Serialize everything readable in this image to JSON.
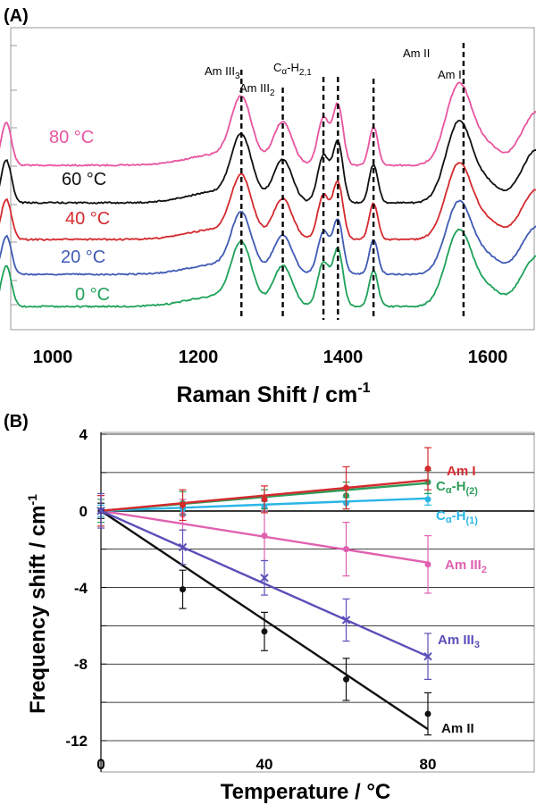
{
  "panel_a": {
    "label": "(A)",
    "xlabel": "Raman Shift / cm",
    "xlabel_sup": "-1",
    "x_ticks": [
      "1000",
      "1200",
      "1400",
      "1600"
    ],
    "spectra": [
      {
        "temp": "80 °C",
        "color": "#e8559f"
      },
      {
        "temp": "60 °C",
        "color": "#111111"
      },
      {
        "temp": "40 °C",
        "color": "#d42a2e"
      },
      {
        "temp": "20 °C",
        "color": "#3f5bb5"
      },
      {
        "temp": "0 °C",
        "color": "#1fa15a"
      }
    ],
    "peak_labels": {
      "am3_3_main": "Am III",
      "am3_3_sub": "3",
      "am3_2_main": "Am III",
      "am3_2_sub": "2",
      "cah_main": "C",
      "cah_alpha": "α",
      "cah_rest": "-H",
      "cah_sub": "2,1",
      "am2": "Am II",
      "am1": "Am I"
    },
    "peak_positions": [
      1260,
      1317,
      1373,
      1393,
      1442,
      1566,
      1668
    ]
  },
  "chart_data": {
    "type": "scatter",
    "xlabel": "Temperature / °C",
    "ylabel": "Frequency shift / cm",
    "ylabel_sup": "-1",
    "xlim": [
      0,
      80
    ],
    "ylim": [
      -12,
      4
    ],
    "x_ticks": [
      "0",
      "40",
      "80"
    ],
    "y_ticks": [
      "4",
      "0",
      "-4",
      "-8",
      "-12"
    ],
    "grid": true,
    "x": [
      0,
      20,
      40,
      60,
      80
    ],
    "series": [
      {
        "name": "Am I",
        "color": "#d42a2e",
        "values": [
          0,
          0.3,
          0.6,
          1.2,
          2.2
        ],
        "err": [
          0.8,
          0.8,
          0.7,
          1.1,
          1.1
        ],
        "fit": [
          0,
          1.6
        ]
      },
      {
        "name": "Cα-H(2)",
        "color": "#2e9d5a",
        "values": [
          0,
          0.4,
          0.6,
          0.8,
          1.5
        ],
        "err": [
          0.6,
          0.6,
          0.5,
          0.7,
          0.6
        ],
        "fit": [
          0,
          1.45
        ]
      },
      {
        "name": "Cα-H(1)",
        "color": "#29b6e6",
        "values": [
          0,
          0.1,
          0.2,
          0.4,
          0.6
        ],
        "err": [
          0.3,
          0.3,
          0.3,
          0.3,
          0.3
        ],
        "fit": [
          0,
          0.65
        ]
      },
      {
        "name": "Am III2",
        "color": "#e060b0",
        "values": [
          0,
          -0.2,
          -1.3,
          -2.0,
          -2.8
        ],
        "err": [
          0.8,
          0.8,
          1.3,
          1.4,
          1.5
        ],
        "fit": [
          0,
          -2.7
        ]
      },
      {
        "name": "Am III3",
        "color": "#5a4fb8",
        "values": [
          0,
          -1.9,
          -3.5,
          -5.7,
          -7.6
        ],
        "err": [
          0.9,
          0.9,
          0.9,
          1.1,
          1.2
        ],
        "fit": [
          0,
          -7.6
        ]
      },
      {
        "name": "Am II",
        "color": "#111111",
        "values": [
          0,
          -4.1,
          -6.3,
          -8.8,
          -10.6
        ],
        "err": [
          0.4,
          1.0,
          1.0,
          1.1,
          1.1
        ],
        "fit": [
          0,
          -11.4
        ]
      }
    ],
    "series_labels": {
      "am1": "Am I",
      "cah2_main": "C",
      "cah2_alpha": "α",
      "cah2_rest": "-H",
      "cah2_sub": "(2)",
      "cah1_main": "C",
      "cah1_alpha": "α",
      "cah1_rest": "-H",
      "cah1_sub": "(1)",
      "am3_2_main": "Am III",
      "am3_2_sub": "2",
      "am3_3_main": "Am III",
      "am3_3_sub": "3",
      "am2": "Am II"
    },
    "label": "(B)"
  }
}
